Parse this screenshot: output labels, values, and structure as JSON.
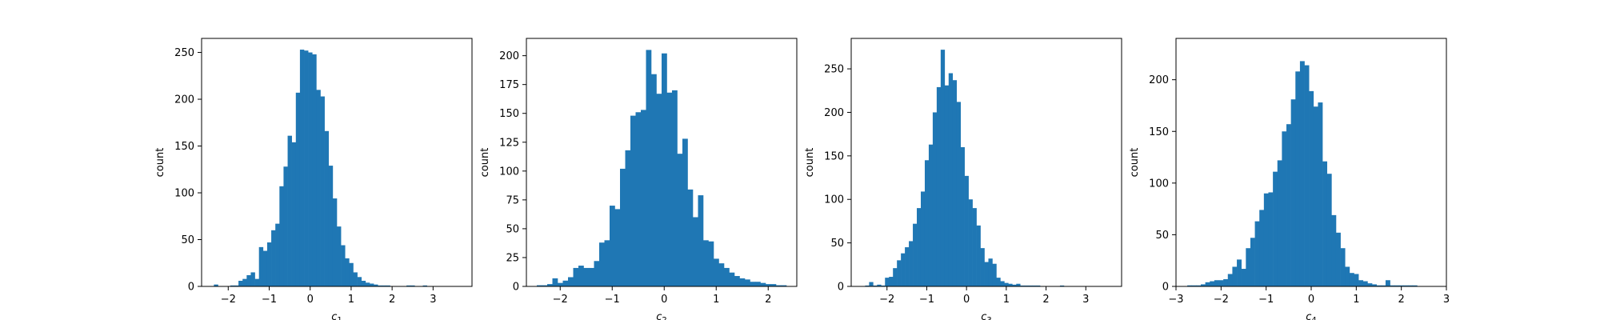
{
  "chart_data": [
    {
      "type": "bar",
      "histogram": true,
      "xlabel": "c",
      "xlabel_sub": "1",
      "ylabel": "count",
      "xlim": [
        -2.65,
        3.95
      ],
      "ylim": [
        0,
        265
      ],
      "xticks": [
        "-2",
        "-1",
        "0",
        "1",
        "2",
        "3"
      ],
      "yticks": [
        "0",
        "50",
        "100",
        "150",
        "200",
        "250"
      ],
      "bin_start": -2.35,
      "bin_width": 0.1,
      "values": [
        2,
        0,
        0,
        0,
        1,
        1,
        6,
        8,
        12,
        15,
        8,
        42,
        38,
        47,
        60,
        67,
        107,
        128,
        161,
        154,
        207,
        253,
        252,
        250,
        248,
        210,
        203,
        166,
        129,
        94,
        64,
        44,
        30,
        25,
        15,
        10,
        6,
        4,
        3,
        2,
        1,
        1,
        1,
        0,
        0,
        0,
        0,
        1,
        1,
        0,
        0,
        1
      ]
    },
    {
      "type": "bar",
      "histogram": true,
      "xlabel": "c",
      "xlabel_sub": "2",
      "ylabel": "count",
      "xlim": [
        -2.65,
        2.55
      ],
      "ylim": [
        0,
        215
      ],
      "xticks": [
        "-2",
        "-1",
        "0",
        "1",
        "2"
      ],
      "yticks": [
        "0",
        "25",
        "50",
        "75",
        "100",
        "125",
        "150",
        "175",
        "200"
      ],
      "bin_start": -2.45,
      "bin_width": 0.1,
      "values": [
        1,
        1,
        2,
        7,
        3,
        5,
        8,
        16,
        18,
        16,
        16,
        22,
        38,
        40,
        70,
        67,
        102,
        118,
        148,
        151,
        153,
        205,
        184,
        167,
        202,
        168,
        170,
        115,
        128,
        84,
        60,
        79,
        40,
        39,
        24,
        20,
        16,
        12,
        9,
        7,
        6,
        4,
        4,
        3,
        2,
        2,
        1,
        1
      ]
    },
    {
      "type": "bar",
      "histogram": true,
      "xlabel": "c",
      "xlabel_sub": "3",
      "ylabel": "count",
      "xlim": [
        -2.9,
        3.9
      ],
      "ylim": [
        0,
        285
      ],
      "xticks": [
        "-2",
        "-1",
        "0",
        "1",
        "2",
        "3"
      ],
      "yticks": [
        "0",
        "50",
        "100",
        "150",
        "200",
        "250"
      ],
      "bin_start": -2.55,
      "bin_width": 0.1,
      "values": [
        1,
        5,
        1,
        2,
        1,
        10,
        11,
        21,
        30,
        38,
        45,
        52,
        72,
        90,
        109,
        145,
        163,
        200,
        229,
        272,
        231,
        245,
        237,
        212,
        160,
        127,
        100,
        90,
        70,
        44,
        28,
        32,
        26,
        10,
        6,
        4,
        3,
        2,
        3,
        1,
        1,
        1,
        1,
        1,
        0,
        0,
        0,
        0,
        0,
        1
      ]
    },
    {
      "type": "bar",
      "histogram": true,
      "xlabel": "c",
      "xlabel_sub": "4",
      "ylabel": "count",
      "xlim": [
        -3.0,
        3.0
      ],
      "ylim": [
        0,
        240
      ],
      "xticks": [
        "-3",
        "-2",
        "-1",
        "0",
        "1",
        "2",
        "3"
      ],
      "yticks": [
        "0",
        "50",
        "100",
        "150",
        "200"
      ],
      "bin_start": -2.75,
      "bin_width": 0.1,
      "values": [
        1,
        1,
        1,
        2,
        4,
        5,
        6,
        6,
        7,
        12,
        19,
        26,
        17,
        37,
        47,
        63,
        74,
        90,
        91,
        111,
        122,
        150,
        157,
        181,
        208,
        218,
        214,
        189,
        174,
        178,
        121,
        109,
        69,
        52,
        37,
        19,
        13,
        12,
        6,
        5,
        3,
        2,
        1,
        1,
        6,
        1,
        1,
        1,
        1,
        1,
        1
      ]
    }
  ]
}
